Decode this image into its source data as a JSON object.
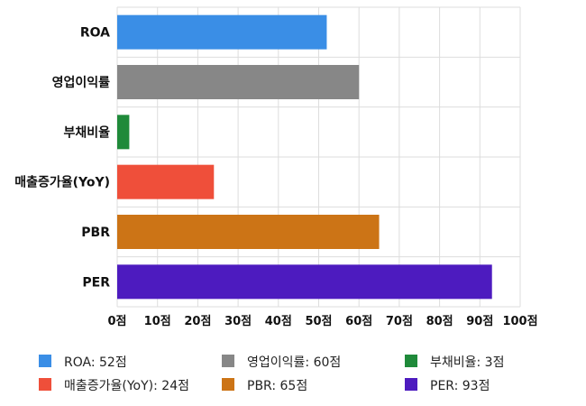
{
  "chart_data": {
    "type": "bar",
    "orientation": "horizontal",
    "categories": [
      "ROA",
      "영업이익률",
      "부채비율",
      "매출증가율(YoY)",
      "PBR",
      "PER"
    ],
    "values": [
      52,
      60,
      3,
      24,
      65,
      93
    ],
    "colors": [
      "#3a8ee6",
      "#878787",
      "#1f8a3a",
      "#ef4f3a",
      "#cc7416",
      "#4d1bbf"
    ],
    "xlim": [
      0,
      100
    ],
    "xticks": [
      0,
      10,
      20,
      30,
      40,
      50,
      60,
      70,
      80,
      90,
      100
    ],
    "tick_suffix": "점",
    "grid": true,
    "legend_position": "bottom",
    "legend": [
      "ROA: 52점",
      "영업이익률: 60점",
      "부채비율: 3점",
      "매출증가율(YoY): 24점",
      "PBR: 65점",
      "PER: 93점"
    ]
  }
}
